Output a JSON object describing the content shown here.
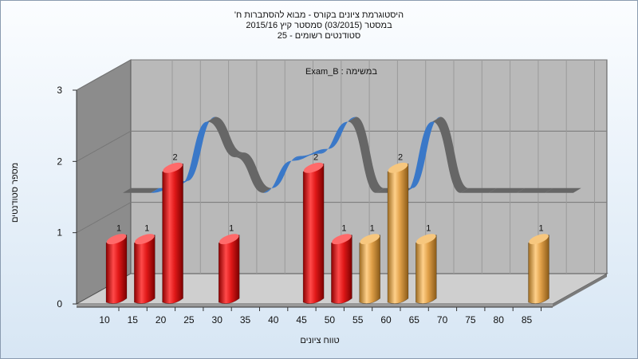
{
  "titles": {
    "line1": "היסטוגרמת ציונים בקורס - מבוא להסתברות ח'",
    "line2": "במסטר  (03/2015)  סמסטר קיץ 2015/16",
    "line3": "סטודנטים רשומים - 25"
  },
  "colors": {
    "red_series": "#e01818",
    "orange_series": "#e0a048",
    "ribbon_blue": "#3a78c8",
    "ribbon_gray": "#666666",
    "back_wall": "#b9b9b9",
    "side_wall": "#8c8c8c"
  },
  "chart_data": {
    "type": "bar",
    "title": "במשימה : Exam_B",
    "xlabel": "טווח ציונים",
    "ylabel": "מספר סטודנטים",
    "categories": [
      "10",
      "15",
      "20",
      "25",
      "30",
      "35",
      "40",
      "45",
      "50",
      "55",
      "60",
      "65",
      "70",
      "75",
      "80",
      "85"
    ],
    "ylim": [
      0,
      3
    ],
    "yticks": [
      "0",
      "1",
      "2",
      "3"
    ],
    "grid": true,
    "series": [
      {
        "color": "#e01818",
        "values": [
          1,
          1,
          2,
          null,
          1,
          null,
          null,
          2,
          1,
          null,
          null,
          null,
          null,
          null,
          null,
          null
        ]
      },
      {
        "color": "#e0a048",
        "values": [
          null,
          null,
          null,
          null,
          null,
          null,
          null,
          null,
          null,
          1,
          2,
          1,
          null,
          null,
          null,
          1
        ]
      }
    ],
    "distribution_curve": [
      1.2,
      1.2,
      1.3,
      2.2,
      1.7,
      1.2,
      1.65,
      1.75,
      2.2,
      1.2,
      1.2,
      2.2,
      1.2,
      1.2,
      1.2,
      1.2,
      1.2
    ]
  }
}
